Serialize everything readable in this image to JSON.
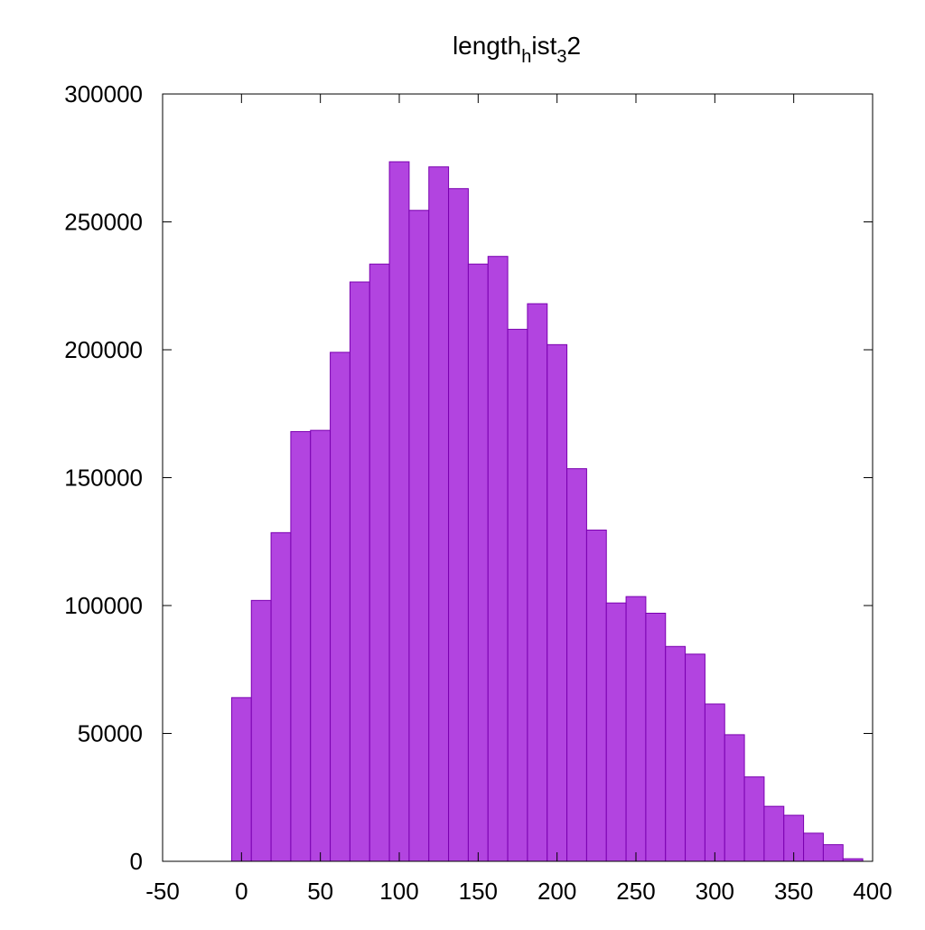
{
  "chart_data": {
    "type": "bar",
    "title": {
      "base": "length",
      "sub1": "h",
      "mid": "ist",
      "sub2": "3",
      "tail": "2"
    },
    "xlabel": "",
    "ylabel": "",
    "xlim": [
      -50,
      400
    ],
    "ylim": [
      0,
      300000
    ],
    "xticks": [
      "-50",
      "0",
      "50",
      "100",
      "150",
      "200",
      "250",
      "300",
      "350",
      "400"
    ],
    "yticks": [
      "0",
      "50000",
      "100000",
      "150000",
      "200000",
      "250000",
      "300000"
    ],
    "xtick_values": [
      -50,
      0,
      50,
      100,
      150,
      200,
      250,
      300,
      350,
      400
    ],
    "ytick_values": [
      0,
      50000,
      100000,
      150000,
      200000,
      250000,
      300000
    ],
    "bin_width": 12.5,
    "x": [
      0,
      12.5,
      25,
      37.5,
      50,
      62.5,
      75,
      87.5,
      100,
      112.5,
      125,
      137.5,
      150,
      162.5,
      175,
      187.5,
      200,
      212.5,
      225,
      237.5,
      250,
      262.5,
      275,
      287.5,
      300,
      312.5,
      325,
      337.5,
      350,
      362.5,
      375,
      387.5
    ],
    "values": [
      64000,
      102000,
      128500,
      168000,
      168500,
      199000,
      226500,
      233500,
      273500,
      254500,
      271500,
      263000,
      233500,
      236500,
      208000,
      218000,
      202000,
      153500,
      129500,
      101000,
      103500,
      97000,
      84000,
      81000,
      61500,
      49500,
      33000,
      21500,
      18000,
      11000,
      6500,
      1000
    ],
    "colors": {
      "bar_fill": "#b244e0",
      "bar_edge": "#7a00b0",
      "axis": "#000000"
    },
    "grid": false,
    "legend": "none"
  }
}
